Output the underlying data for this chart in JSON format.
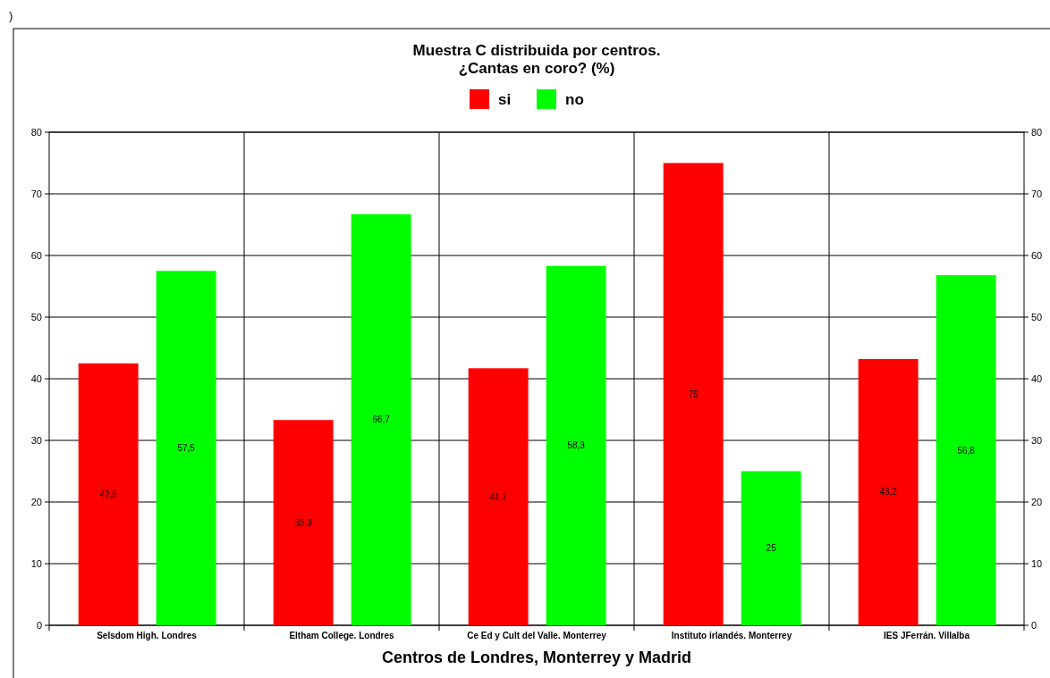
{
  "chart_data": {
    "type": "bar",
    "title": "Muestra C distribuida por centros.\n¿Cantas en coro? (%)",
    "xlabel": "Centros de Londres, Monterrey y Madrid",
    "annotations": [
      ")"
    ],
    "categories": [
      "Selsdom High. Londres",
      "Eltham College. Londres",
      "Ce Ed y Cult del Valle. Monterrey",
      "Instituto irlandés. Monterrey",
      "IES JFerrán. Villalba"
    ],
    "series": [
      {
        "name": "si",
        "color": "#ff0000",
        "values": [
          42.5,
          33.3,
          41.7,
          75,
          43.2
        ],
        "value_labels": [
          "42,5",
          "33,3",
          "41,7",
          "75",
          "43,2"
        ]
      },
      {
        "name": "no",
        "color": "#00ff00",
        "values": [
          57.5,
          66.7,
          58.3,
          25,
          56.8
        ],
        "value_labels": [
          "57,5",
          "66,7",
          "58,3",
          "25",
          "56,8"
        ]
      }
    ],
    "ylim": [
      0,
      80
    ],
    "yticks": [
      0,
      10,
      20,
      30,
      40,
      50,
      60,
      70,
      80
    ],
    "y2lim": [
      0,
      80
    ],
    "y2ticks": [
      0,
      10,
      20,
      30,
      40,
      50,
      60,
      70,
      80
    ],
    "grid": true,
    "legend": "top"
  }
}
